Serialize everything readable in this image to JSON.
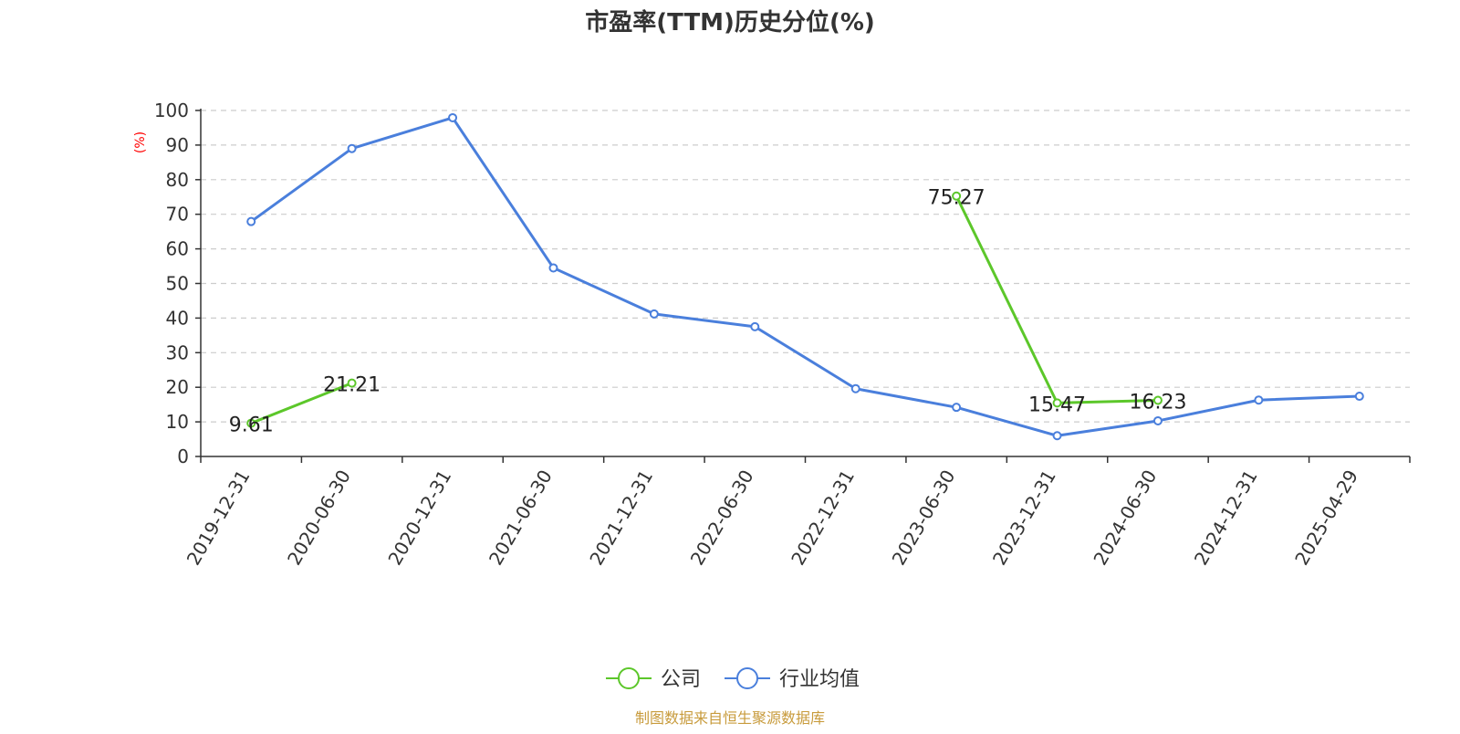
{
  "chart_data": {
    "type": "line",
    "title": "市盈率(TTM)历史分位(%)",
    "yunit": "(%)",
    "ylim": [
      0,
      100
    ],
    "yticks": [
      0,
      10,
      20,
      30,
      40,
      50,
      60,
      70,
      80,
      90,
      100
    ],
    "grid": true,
    "legend_position": "bottom",
    "categories": [
      "2019-12-31",
      "2020-06-30",
      "2020-12-31",
      "2021-06-30",
      "2021-12-31",
      "2022-06-30",
      "2022-12-31",
      "2023-06-30",
      "2023-12-31",
      "2024-06-30",
      "2024-12-31",
      "2025-04-29"
    ],
    "series": [
      {
        "name": "公司",
        "color": "#5cc72a",
        "values": [
          9.61,
          21.21,
          null,
          null,
          null,
          null,
          null,
          75.27,
          15.47,
          16.23,
          null,
          null
        ],
        "labels": [
          "9.61",
          "21.21",
          null,
          null,
          null,
          null,
          null,
          "75.27",
          "15.47",
          "16.23",
          null,
          null
        ]
      },
      {
        "name": "行业均值",
        "color": "#4a7fdc",
        "values": [
          67.9,
          89.0,
          97.9,
          54.5,
          41.2,
          37.5,
          19.6,
          14.2,
          6.0,
          10.3,
          16.3,
          17.4
        ]
      }
    ],
    "source": "制图数据来自恒生聚源数据库",
    "source_color": "#c89b3c",
    "unit_color": "#ff0000"
  }
}
